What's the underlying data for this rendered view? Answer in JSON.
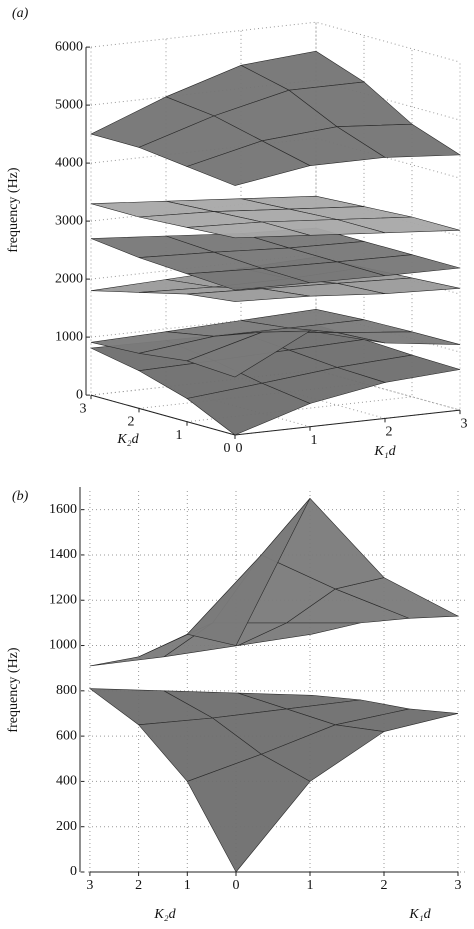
{
  "chart_data": [
    {
      "type": "surface",
      "label": "(a)",
      "zlabel": "frequency (Hz)",
      "xlabel": "K₁d",
      "ylabel": "K₂d",
      "x": [
        0,
        1,
        2,
        3
      ],
      "y": [
        0,
        1,
        2,
        3
      ],
      "xlim": [
        0,
        3
      ],
      "ylim": [
        0,
        3
      ],
      "zlim": [
        0,
        6000
      ],
      "xticks": [
        0,
        1,
        2,
        3
      ],
      "yticks": [
        0,
        1,
        2,
        3
      ],
      "zticks": [
        0,
        1000,
        2000,
        3000,
        4000,
        5000,
        6000
      ],
      "grid": true,
      "surfaces": [
        {
          "color": "#6e6e6e",
          "values": [
            [
              0,
              400,
              620,
              700
            ],
            [
              400,
              520,
              650,
              720
            ],
            [
              650,
              680,
              720,
              760
            ],
            [
              810,
              800,
              790,
              780
            ]
          ]
        },
        {
          "color": "#7a7a7a",
          "values": [
            [
              1000,
              1650,
              1300,
              1130
            ],
            [
              1050,
              1400,
              1250,
              1120
            ],
            [
              950,
              1100,
              1100,
              1100
            ],
            [
              910,
              950,
              1000,
              1050
            ]
          ]
        },
        {
          "color": "#9a9a9a",
          "values": [
            [
              2300,
              2250,
              2150,
              2100
            ],
            [
              2200,
              2150,
              2100,
              2050
            ],
            [
              2000,
              1950,
              1950,
              2000
            ],
            [
              1800,
              1850,
              1900,
              1950
            ]
          ]
        },
        {
          "color": "#777777",
          "values": [
            [
              2500,
              2480,
              2460,
              2450
            ],
            [
              2550,
              2500,
              2470,
              2450
            ],
            [
              2600,
              2550,
              2480,
              2450
            ],
            [
              2700,
              2600,
              2500,
              2450
            ]
          ]
        },
        {
          "color": "#a8a8a8",
          "values": [
            [
              3400,
              3300,
              3200,
              3100
            ],
            [
              3350,
              3300,
              3200,
              3100
            ],
            [
              3300,
              3250,
              3150,
              3050
            ],
            [
              3300,
              3200,
              3100,
              3000
            ]
          ]
        },
        {
          "color": "#747474",
          "values": [
            [
              4300,
              4500,
              4500,
              4400
            ],
            [
              4400,
              4700,
              4800,
              4700
            ],
            [
              4500,
              4900,
              5200,
              5200
            ],
            [
              4500,
              5000,
              5400,
              5500
            ]
          ]
        }
      ]
    },
    {
      "type": "surface",
      "label": "(b)",
      "zlabel": "frequency (Hz)",
      "xlabel": "K₁d",
      "ylabel": "K₂d",
      "x": [
        0,
        1,
        2,
        3
      ],
      "y": [
        0,
        1,
        2,
        3
      ],
      "xlim": [
        0,
        3
      ],
      "ylim": [
        0,
        3
      ],
      "zlim": [
        0,
        1700
      ],
      "xticks": [
        0,
        1,
        2,
        3
      ],
      "yticks": [
        1,
        2,
        3
      ],
      "zticks": [
        0,
        200,
        400,
        600,
        800,
        1000,
        1200,
        1400,
        1600
      ],
      "grid": true,
      "surfaces": [
        {
          "color": "#6e6e6e",
          "values": [
            [
              0,
              400,
              620,
              700
            ],
            [
              400,
              520,
              650,
              720
            ],
            [
              650,
              680,
              720,
              760
            ],
            [
              810,
              800,
              790,
              780
            ]
          ]
        },
        {
          "color": "#7a7a7a",
          "values": [
            [
              1000,
              1650,
              1300,
              1130
            ],
            [
              1050,
              1400,
              1250,
              1120
            ],
            [
              950,
              1100,
              1100,
              1100
            ],
            [
              910,
              950,
              1000,
              1050
            ]
          ]
        }
      ]
    }
  ]
}
